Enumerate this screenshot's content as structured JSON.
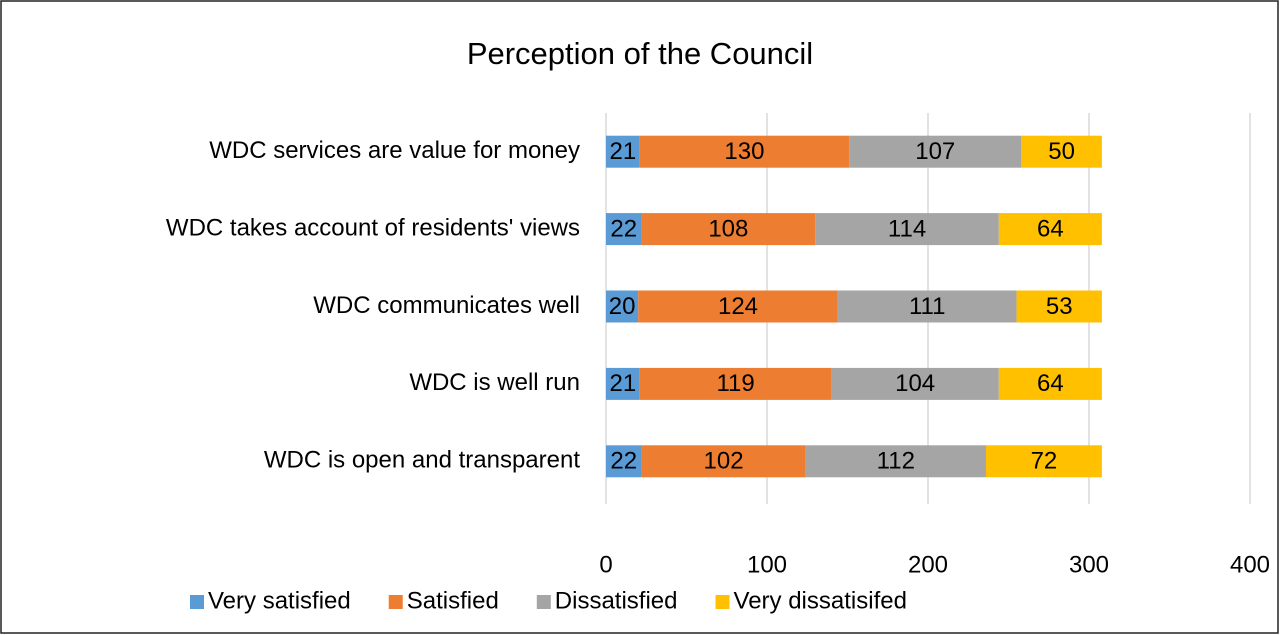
{
  "chart_data": {
    "type": "stacked_bar_horizontal",
    "title": "Perception of the Council",
    "categories": [
      "WDC services are value for money",
      "WDC takes account of residents' views",
      "WDC communicates well",
      "WDC is well run",
      "WDC is open and transparent"
    ],
    "series": [
      {
        "name": "Very satisfied",
        "color": "#5b9bd5",
        "values": [
          21,
          22,
          20,
          21,
          22
        ]
      },
      {
        "name": "Satisfied",
        "color": "#ed7d31",
        "values": [
          130,
          108,
          124,
          119,
          102
        ]
      },
      {
        "name": "Dissatisfied",
        "color": "#a5a5a5",
        "values": [
          107,
          114,
          111,
          104,
          112
        ]
      },
      {
        "name": "Very dissatisifed",
        "color": "#ffc000",
        "values": [
          50,
          64,
          53,
          64,
          72
        ]
      }
    ],
    "xlim": [
      0,
      400
    ],
    "xticks": [
      0,
      100,
      200,
      300,
      400
    ],
    "grid": true,
    "legend": "bottom"
  }
}
